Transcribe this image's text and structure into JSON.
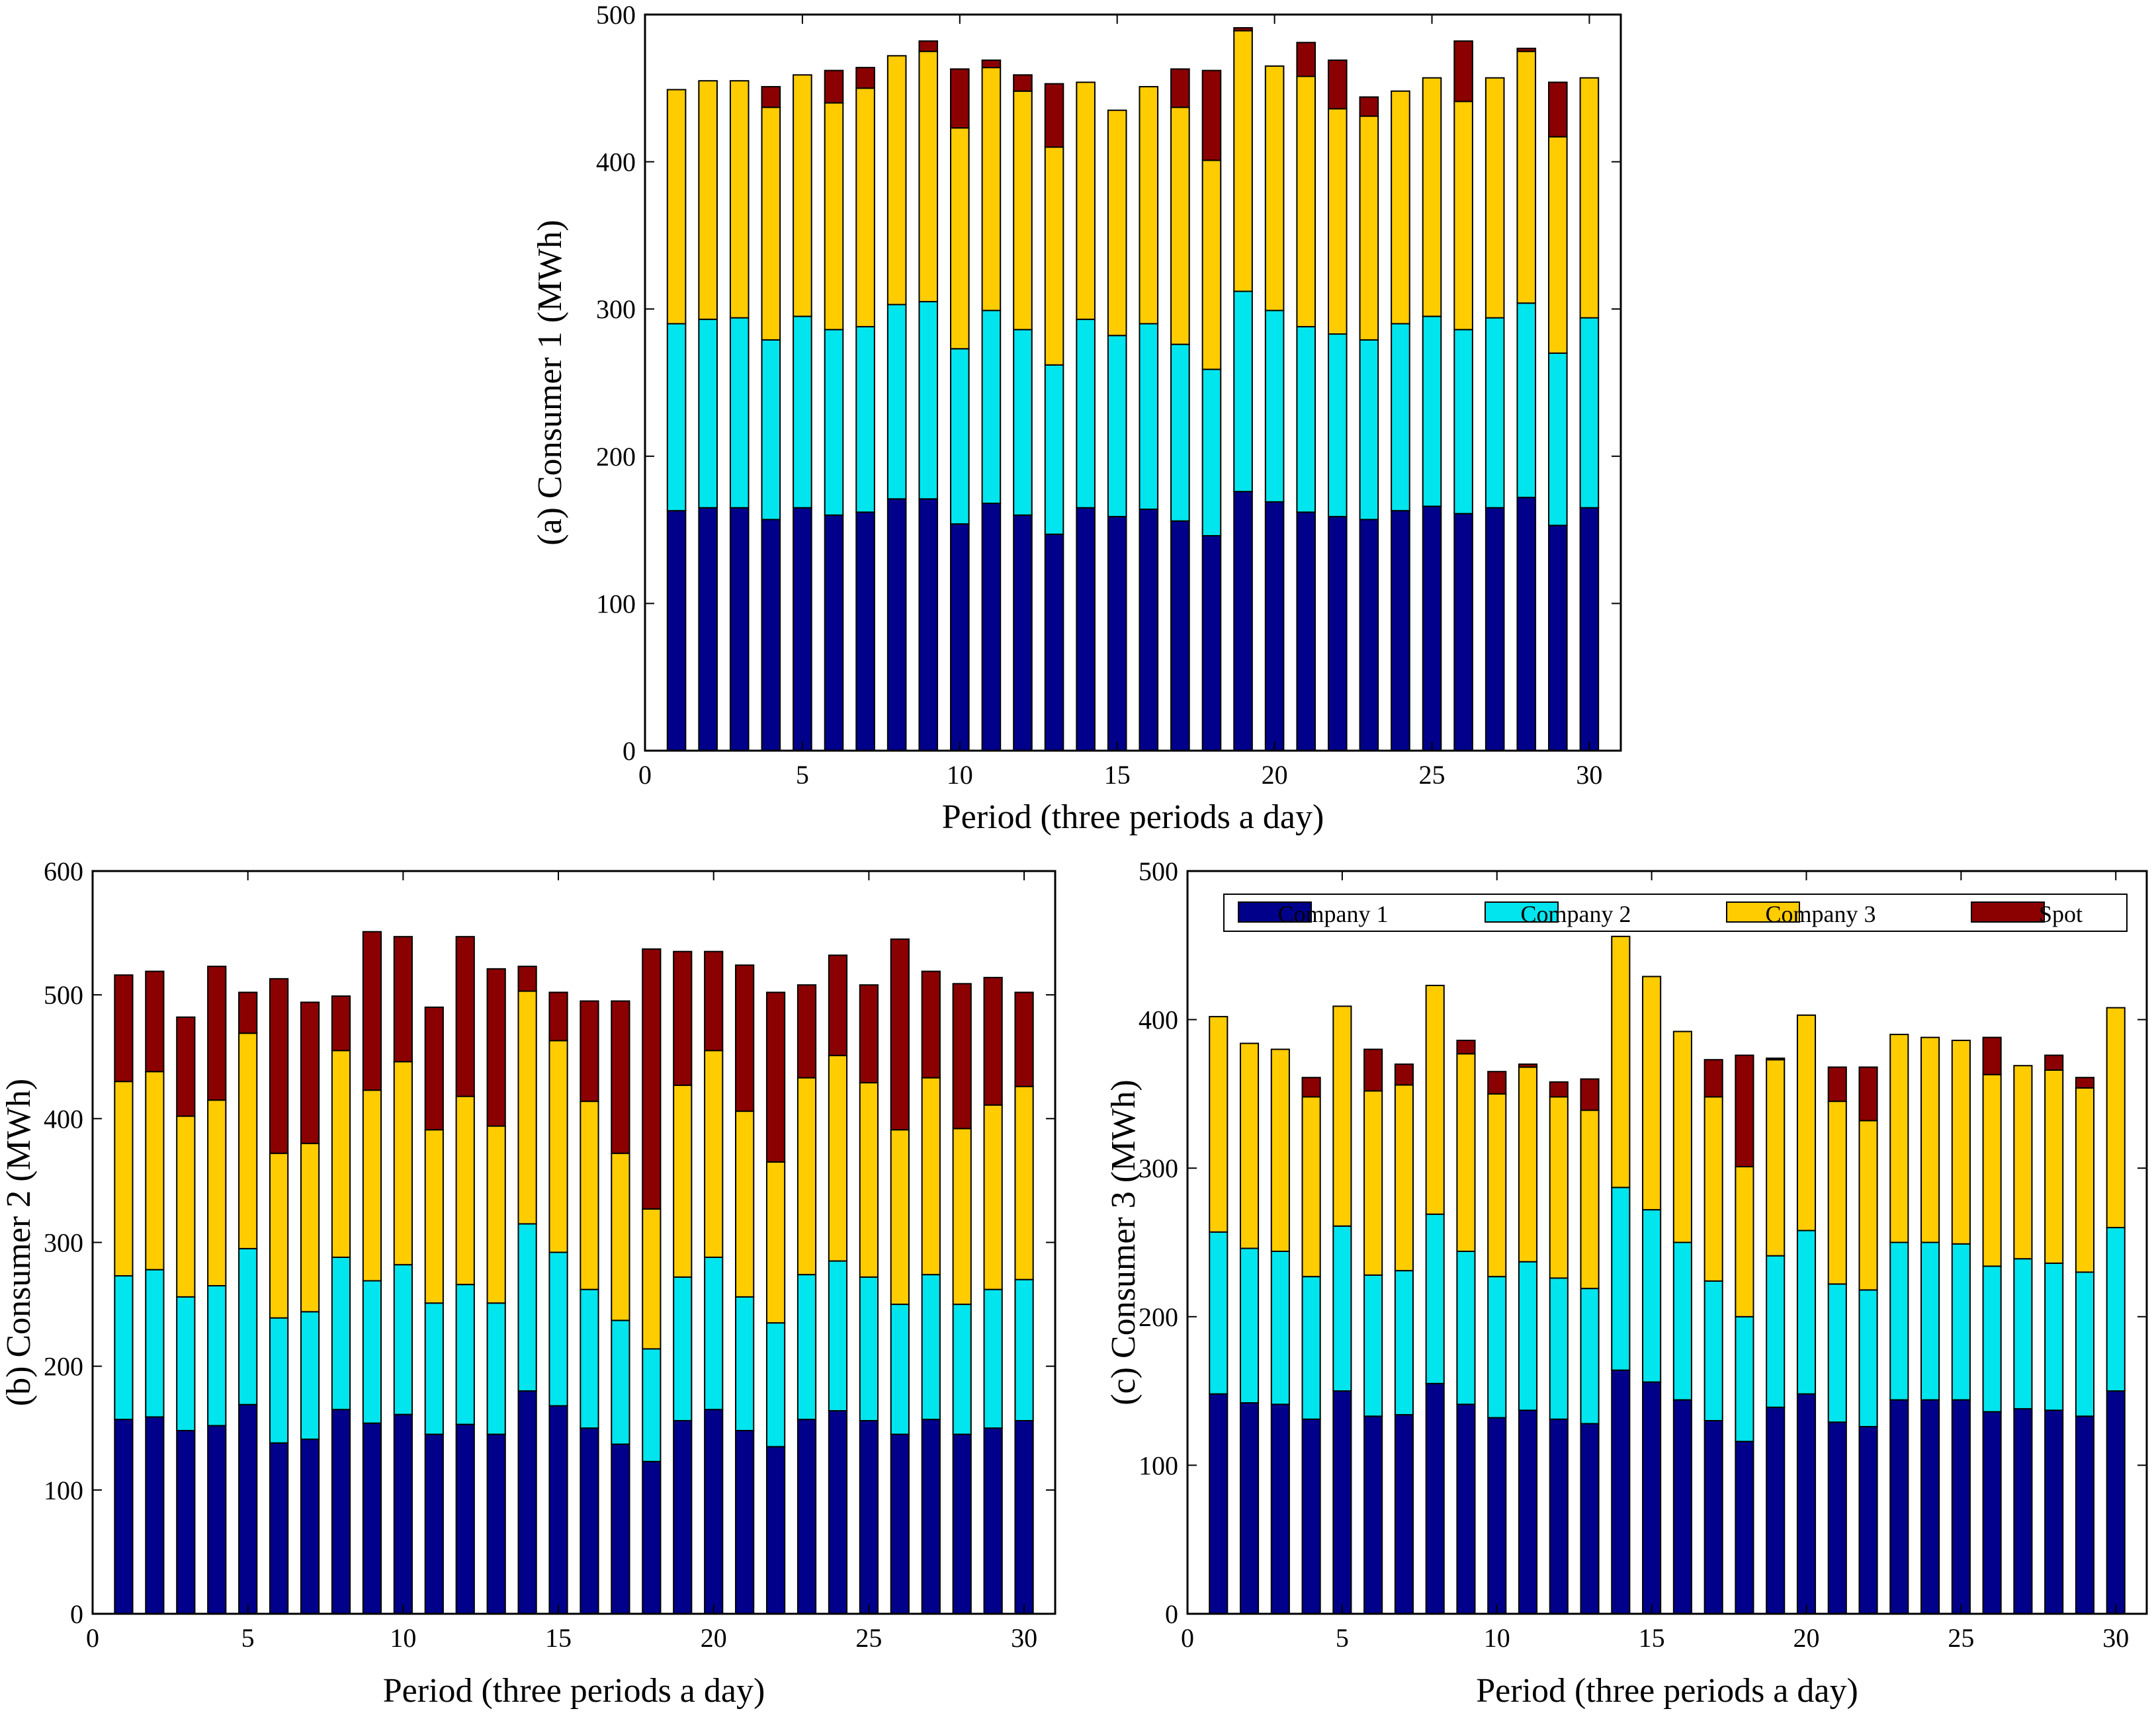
{
  "colors": {
    "company1": "#00008B",
    "company2": "#00E5EE",
    "company3": "#FFCC00",
    "spot": "#8B0000"
  },
  "chart_data": [
    {
      "type": "bar",
      "stacked": true,
      "id": "consumer1",
      "title": "",
      "xlabel": "Period  (three periods a day)",
      "ylabel": "(a) Consumer 1 (MWh)",
      "xlim": [
        0,
        31
      ],
      "ylim": [
        0,
        500
      ],
      "xticks": [
        0,
        5,
        10,
        15,
        20,
        25,
        30
      ],
      "yticks": [
        0,
        100,
        200,
        300,
        400,
        500
      ],
      "categories": [
        1,
        2,
        3,
        4,
        5,
        6,
        7,
        8,
        9,
        10,
        11,
        12,
        13,
        14,
        15,
        16,
        17,
        18,
        19,
        20,
        21,
        22,
        23,
        24,
        25,
        26,
        27,
        28,
        29,
        30
      ],
      "series": [
        {
          "name": "Company 1",
          "color_key": "company1",
          "values": [
            163,
            165,
            165,
            157,
            165,
            160,
            162,
            171,
            171,
            154,
            168,
            160,
            147,
            165,
            159,
            164,
            156,
            146,
            176,
            169,
            162,
            159,
            157,
            163,
            166,
            161,
            165,
            172,
            153,
            165
          ]
        },
        {
          "name": "Company 2",
          "color_key": "company2",
          "values": [
            127,
            128,
            129,
            122,
            130,
            126,
            126,
            132,
            134,
            119,
            131,
            126,
            115,
            128,
            123,
            126,
            120,
            113,
            136,
            130,
            126,
            124,
            122,
            127,
            129,
            125,
            129,
            132,
            117,
            129
          ]
        },
        {
          "name": "Company 3",
          "color_key": "company3",
          "values": [
            159,
            162,
            161,
            158,
            164,
            154,
            162,
            169,
            170,
            150,
            165,
            162,
            148,
            161,
            153,
            161,
            161,
            142,
            177,
            166,
            170,
            153,
            152,
            158,
            162,
            155,
            163,
            171,
            147,
            163
          ]
        },
        {
          "name": "Spot",
          "color_key": "spot",
          "values": [
            0,
            0,
            0,
            14,
            0,
            22,
            14,
            0,
            7,
            40,
            5,
            11,
            43,
            0,
            0,
            0,
            26,
            61,
            2,
            0,
            23,
            33,
            13,
            0,
            0,
            41,
            0,
            2,
            37,
            0
          ]
        }
      ],
      "legend": null
    },
    {
      "type": "bar",
      "stacked": true,
      "id": "consumer2",
      "title": "",
      "xlabel": "Period  (three periods a day)",
      "ylabel": "(b) Consumer 2 (MWh)",
      "xlim": [
        0,
        31
      ],
      "ylim": [
        0,
        600
      ],
      "xticks": [
        0,
        5,
        10,
        15,
        20,
        25,
        30
      ],
      "yticks": [
        0,
        100,
        200,
        300,
        400,
        500,
        600
      ],
      "categories": [
        1,
        2,
        3,
        4,
        5,
        6,
        7,
        8,
        9,
        10,
        11,
        12,
        13,
        14,
        15,
        16,
        17,
        18,
        19,
        20,
        21,
        22,
        23,
        24,
        25,
        26,
        27,
        28,
        29,
        30
      ],
      "series": [
        {
          "name": "Company 1",
          "color_key": "company1",
          "values": [
            157,
            159,
            148,
            152,
            169,
            138,
            141,
            165,
            154,
            161,
            145,
            153,
            145,
            180,
            168,
            150,
            137,
            123,
            156,
            165,
            148,
            135,
            157,
            164,
            156,
            145,
            157,
            145,
            150,
            156
          ]
        },
        {
          "name": "Company 2",
          "color_key": "company2",
          "values": [
            116,
            119,
            108,
            113,
            126,
            101,
            103,
            123,
            115,
            121,
            106,
            113,
            106,
            135,
            124,
            112,
            100,
            91,
            116,
            123,
            108,
            100,
            117,
            121,
            116,
            105,
            117,
            105,
            112,
            114
          ]
        },
        {
          "name": "Company 3",
          "color_key": "company3",
          "values": [
            157,
            160,
            146,
            150,
            174,
            133,
            136,
            167,
            154,
            164,
            140,
            152,
            143,
            188,
            171,
            152,
            135,
            113,
            155,
            167,
            150,
            130,
            159,
            166,
            157,
            141,
            159,
            142,
            149,
            156
          ]
        },
        {
          "name": "Spot",
          "color_key": "spot",
          "values": [
            86,
            81,
            80,
            108,
            33,
            141,
            114,
            44,
            128,
            101,
            99,
            129,
            127,
            20,
            39,
            81,
            123,
            210,
            108,
            80,
            118,
            137,
            75,
            81,
            79,
            154,
            86,
            117,
            103,
            76
          ]
        }
      ],
      "legend": null
    },
    {
      "type": "bar",
      "stacked": true,
      "id": "consumer3",
      "title": "",
      "xlabel": "Period  (three periods a day)",
      "ylabel": "(c) Consumer 3 (MWh)",
      "xlim": [
        0,
        31
      ],
      "ylim": [
        0,
        500
      ],
      "xticks": [
        0,
        5,
        10,
        15,
        20,
        25,
        30
      ],
      "yticks": [
        0,
        100,
        200,
        300,
        400,
        500
      ],
      "categories": [
        1,
        2,
        3,
        4,
        5,
        6,
        7,
        8,
        9,
        10,
        11,
        12,
        13,
        14,
        15,
        16,
        17,
        18,
        19,
        20,
        21,
        22,
        23,
        24,
        25,
        26,
        27,
        28,
        29,
        30
      ],
      "series": [
        {
          "name": "Company 1",
          "color_key": "company1",
          "values": [
            148,
            142,
            141,
            131,
            150,
            133,
            134,
            155,
            141,
            132,
            137,
            131,
            128,
            164,
            156,
            144,
            130,
            116,
            139,
            148,
            129,
            126,
            144,
            144,
            144,
            136,
            138,
            137,
            133,
            150
          ]
        },
        {
          "name": "Company 2",
          "color_key": "company2",
          "values": [
            109,
            104,
            103,
            96,
            111,
            95,
            97,
            114,
            103,
            95,
            100,
            95,
            91,
            123,
            116,
            106,
            94,
            84,
            102,
            110,
            93,
            92,
            106,
            106,
            105,
            98,
            101,
            99,
            97,
            110
          ]
        },
        {
          "name": "Company 3",
          "color_key": "company3",
          "values": [
            145,
            138,
            136,
            121,
            148,
            124,
            125,
            154,
            133,
            123,
            131,
            122,
            120,
            169,
            157,
            142,
            124,
            101,
            132,
            145,
            123,
            114,
            140,
            138,
            137,
            129,
            130,
            130,
            124,
            148
          ]
        },
        {
          "name": "Spot",
          "color_key": "spot",
          "values": [
            0,
            0,
            0,
            13,
            0,
            28,
            14,
            0,
            9,
            15,
            2,
            10,
            21,
            0,
            0,
            0,
            25,
            75,
            1,
            0,
            23,
            36,
            0,
            0,
            0,
            25,
            0,
            10,
            7,
            0
          ]
        }
      ],
      "legend": {
        "placement": "top",
        "entries": [
          "Company 1",
          "Company 2",
          "Company 3",
          "Spot"
        ]
      }
    }
  ]
}
